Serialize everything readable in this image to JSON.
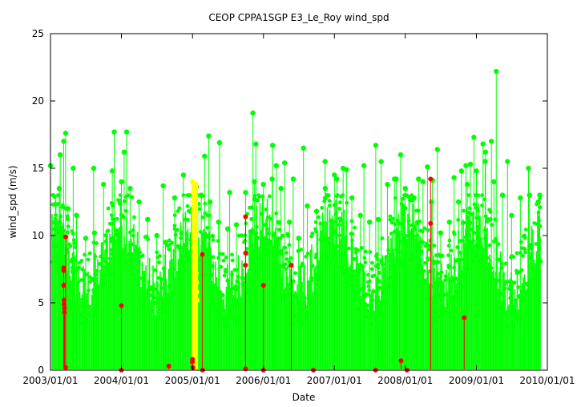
{
  "chart_data": {
    "type": "scatter",
    "title": "CEOP CPPA1SGP E3_Le_Roy  wind_spd",
    "xlabel": "Date",
    "ylabel": "wind_spd (m/s)",
    "xlim": [
      "2003/01/01",
      "2010/01/01"
    ],
    "ylim": [
      0,
      25
    ],
    "x_tick_labels": [
      "2003/01/01",
      "2004/01/01",
      "2005/01/01",
      "2006/01/01",
      "2007/01/01",
      "2008/01/01",
      "2009/01/01",
      "2010/01/01"
    ],
    "y_ticks": [
      0,
      5,
      10,
      15,
      20,
      25
    ],
    "grid": false,
    "legend": "none",
    "colors": {
      "good": "#00ff00",
      "suspect": "#ffff00",
      "flagged": "#ff0000"
    },
    "series": [
      {
        "flag": "good",
        "color": "#00ff00",
        "x": [
          "2003/01/01",
          "2003/02/15",
          "2003/04/01",
          "2003/05/15",
          "2003/07/01",
          "2003/08/15",
          "2003/10/01",
          "2003/11/15",
          "2004/01/01",
          "2004/02/15",
          "2004/04/01",
          "2004/05/15",
          "2004/07/01",
          "2004/08/15",
          "2004/10/01",
          "2004/11/15",
          "2005/01/20",
          "2005/02/15",
          "2005/04/01",
          "2005/05/15",
          "2005/07/01",
          "2005/08/15",
          "2005/10/01",
          "2005/11/15",
          "2006/01/01",
          "2006/02/15",
          "2006/04/01",
          "2006/05/15",
          "2006/07/01",
          "2006/08/15",
          "2006/10/01",
          "2006/11/15",
          "2007/01/01",
          "2007/02/15",
          "2007/04/01",
          "2007/05/15",
          "2007/07/01",
          "2007/08/15",
          "2007/10/01",
          "2007/11/15",
          "2008/01/01",
          "2008/02/15",
          "2008/04/01",
          "2008/05/15",
          "2008/07/01",
          "2008/08/15",
          "2008/10/01",
          "2008/11/15",
          "2009/01/01",
          "2009/02/15",
          "2009/04/01",
          "2009/05/15",
          "2009/07/01",
          "2009/08/15",
          "2009/10/01",
          "2009/11/15",
          "2003/03/10",
          "2003/03/20",
          "2003/11/25",
          "2004/01/15",
          "2005/03/25",
          "2005/05/20",
          "2005/11/08",
          "2006/02/17",
          "2006/04/20",
          "2006/07/26",
          "2007/01/14",
          "2007/06/02",
          "2007/08/02",
          "2007/11/06",
          "2008/03/09",
          "2008/04/24",
          "2008/06/14",
          "2008/10/16",
          "2008/11/08",
          "2008/12/19",
          "2009/02/04",
          "2009/02/17",
          "2009/03/19",
          "2009/04/13",
          "2009/09/26",
          "2003/02/20",
          "2003/04/28",
          "2003/08/11",
          "2004/01/28",
          "2004/08/03",
          "2005/03/04",
          "2005/07/11",
          "2005/11/23",
          "2006/03/08",
          "2006/06/03",
          "2006/11/14",
          "2007/03/04",
          "2007/08/30",
          "2007/12/08",
          "2008/05/20",
          "2008/09/08",
          "2008/12/01",
          "2009/06/10",
          "2009/11/23"
        ],
        "y": [
          15.2,
          13.5,
          12.0,
          11.5,
          9.8,
          10.2,
          13.8,
          14.8,
          14.0,
          13.5,
          12.5,
          11.2,
          10.0,
          9.5,
          12.8,
          14.5,
          13.6,
          13.0,
          12.5,
          11.0,
          10.5,
          10.8,
          13.2,
          14.0,
          13.8,
          14.2,
          13.5,
          11.0,
          9.8,
          12.2,
          11.8,
          13.5,
          14.5,
          15.0,
          12.8,
          11.5,
          11.0,
          11.2,
          13.8,
          14.2,
          13.5,
          12.8,
          14.0,
          12.5,
          10.2,
          11.0,
          12.5,
          13.8,
          14.8,
          15.5,
          14.0,
          13.0,
          11.5,
          12.8,
          13.0,
          12.5,
          17.0,
          17.6,
          17.7,
          16.2,
          17.4,
          16.9,
          19.1,
          16.7,
          15.4,
          16.5,
          14.2,
          15.2,
          16.7,
          14.2,
          14.2,
          15.1,
          16.4,
          14.8,
          15.2,
          17.3,
          16.8,
          16.2,
          17.0,
          22.2,
          15.0,
          16.0,
          15.0,
          15.0,
          17.7,
          13.7,
          15.9,
          13.2,
          16.8,
          15.2,
          14.2,
          15.5,
          14.9,
          15.5,
          16.0,
          14.1,
          14.3,
          15.3,
          15.5,
          13.0
        ]
      },
      {
        "flag": "suspect",
        "color": "#ffff00",
        "x": [
          "2005/01/01",
          "2005/01/03",
          "2005/01/05",
          "2005/01/07",
          "2005/01/09",
          "2005/01/11",
          "2005/01/13",
          "2005/01/15",
          "2005/01/17",
          "2005/01/19",
          "2005/01/21",
          "2005/01/23",
          "2005/01/25"
        ],
        "y": [
          14.0,
          13.2,
          12.5,
          11.8,
          11.0,
          10.2,
          9.5,
          8.8,
          8.0,
          7.2,
          6.5,
          5.8,
          5.2
        ]
      },
      {
        "flag": "flagged",
        "color": "#ff0000",
        "x": [
          "2003/03/10",
          "2003/03/10",
          "2003/03/10",
          "2003/03/12",
          "2003/03/12",
          "2003/03/14",
          "2003/03/14",
          "2003/03/20",
          "2003/03/20",
          "2004/01/01",
          "2004/01/01",
          "2004/09/01",
          "2004/12/31",
          "2005/01/01",
          "2005/01/03",
          "2005/02/20",
          "2005/02/22",
          "2005/10/01",
          "2005/10/01",
          "2005/10/01",
          "2005/10/01",
          "2006/01/01",
          "2006/01/01",
          "2006/05/24",
          "2006/09/15",
          "2007/08/01",
          "2007/12/10",
          "2008/01/10",
          "2008/05/10",
          "2008/05/10",
          "2008/10/30"
        ],
        "y": [
          7.6,
          7.4,
          6.3,
          5.2,
          4.9,
          4.6,
          4.3,
          9.9,
          0.2,
          4.8,
          0.0,
          0.3,
          0.6,
          0.8,
          0.2,
          8.6,
          0.0,
          11.4,
          8.7,
          7.8,
          0.1,
          6.3,
          0.0,
          7.8,
          0.0,
          0.0,
          0.7,
          0.0,
          14.2,
          10.9,
          3.9
        ]
      }
    ]
  }
}
